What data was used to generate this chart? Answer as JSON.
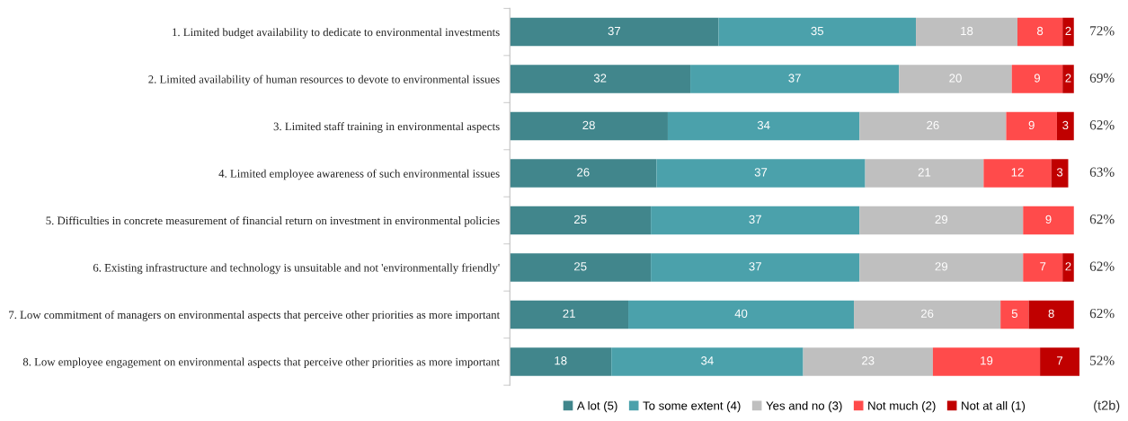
{
  "chart_data": {
    "type": "bar",
    "orientation": "horizontal",
    "stacked": true,
    "categories": [
      "1. Limited budget availability to dedicate to environmental investments",
      "2. Limited availability of human resources to devote to environmental issues",
      "3. Limited staff training in environmental aspects",
      "4. Limited employee awareness of such environmental issues",
      "5. Difficulties in concrete measurement of financial return on investment in environmental policies",
      "6. Existing infrastructure and technology is unsuitable and not 'environmentally friendly'",
      "7. Low commitment of managers on environmental aspects that perceive other priorities as more important",
      "8. Low employee engagement on environmental aspects that perceive other priorities as more important"
    ],
    "series": [
      {
        "name": "A lot (5)",
        "color": "#41868c",
        "values": [
          37,
          32,
          28,
          26,
          25,
          25,
          21,
          18
        ],
        "value_labels": [
          "37",
          "32",
          "28",
          "26",
          "25",
          "25",
          "21",
          "18"
        ]
      },
      {
        "name": "To some extent (4)",
        "color": "#4ba1ab",
        "values": [
          35,
          37,
          34,
          37,
          37,
          37,
          40,
          34
        ],
        "value_labels": [
          "35",
          "37",
          "34",
          "37",
          "37",
          "37",
          "40",
          "34"
        ]
      },
      {
        "name": "Yes and no (3)",
        "color": "#bfbfbf",
        "values": [
          18,
          20,
          26,
          21,
          29,
          29,
          26,
          23
        ],
        "value_labels": [
          "18",
          "20",
          "26",
          "21",
          "29",
          "29",
          "26",
          "23"
        ]
      },
      {
        "name": "Not much (2)",
        "color": "#ff4b4b",
        "values": [
          8,
          9,
          9,
          12,
          9,
          7,
          5,
          19
        ],
        "value_labels": [
          "8",
          "9",
          "9",
          "12",
          "9",
          "7",
          "5",
          "19"
        ]
      },
      {
        "name": "Not at all (1)",
        "color": "#c00000",
        "values": [
          2,
          2,
          3,
          3,
          0,
          2,
          8,
          7
        ],
        "value_labels": [
          "2",
          "2",
          "3",
          "3",
          null,
          "2",
          "8",
          "7"
        ]
      }
    ],
    "xlim": [
      0,
      101
    ],
    "tick_labels": "y",
    "legend": "bottom",
    "annotations": [
      "72%",
      "69%",
      "62%",
      "63%",
      "62%",
      "62%",
      "62%",
      "52%",
      "(t2b)"
    ]
  }
}
